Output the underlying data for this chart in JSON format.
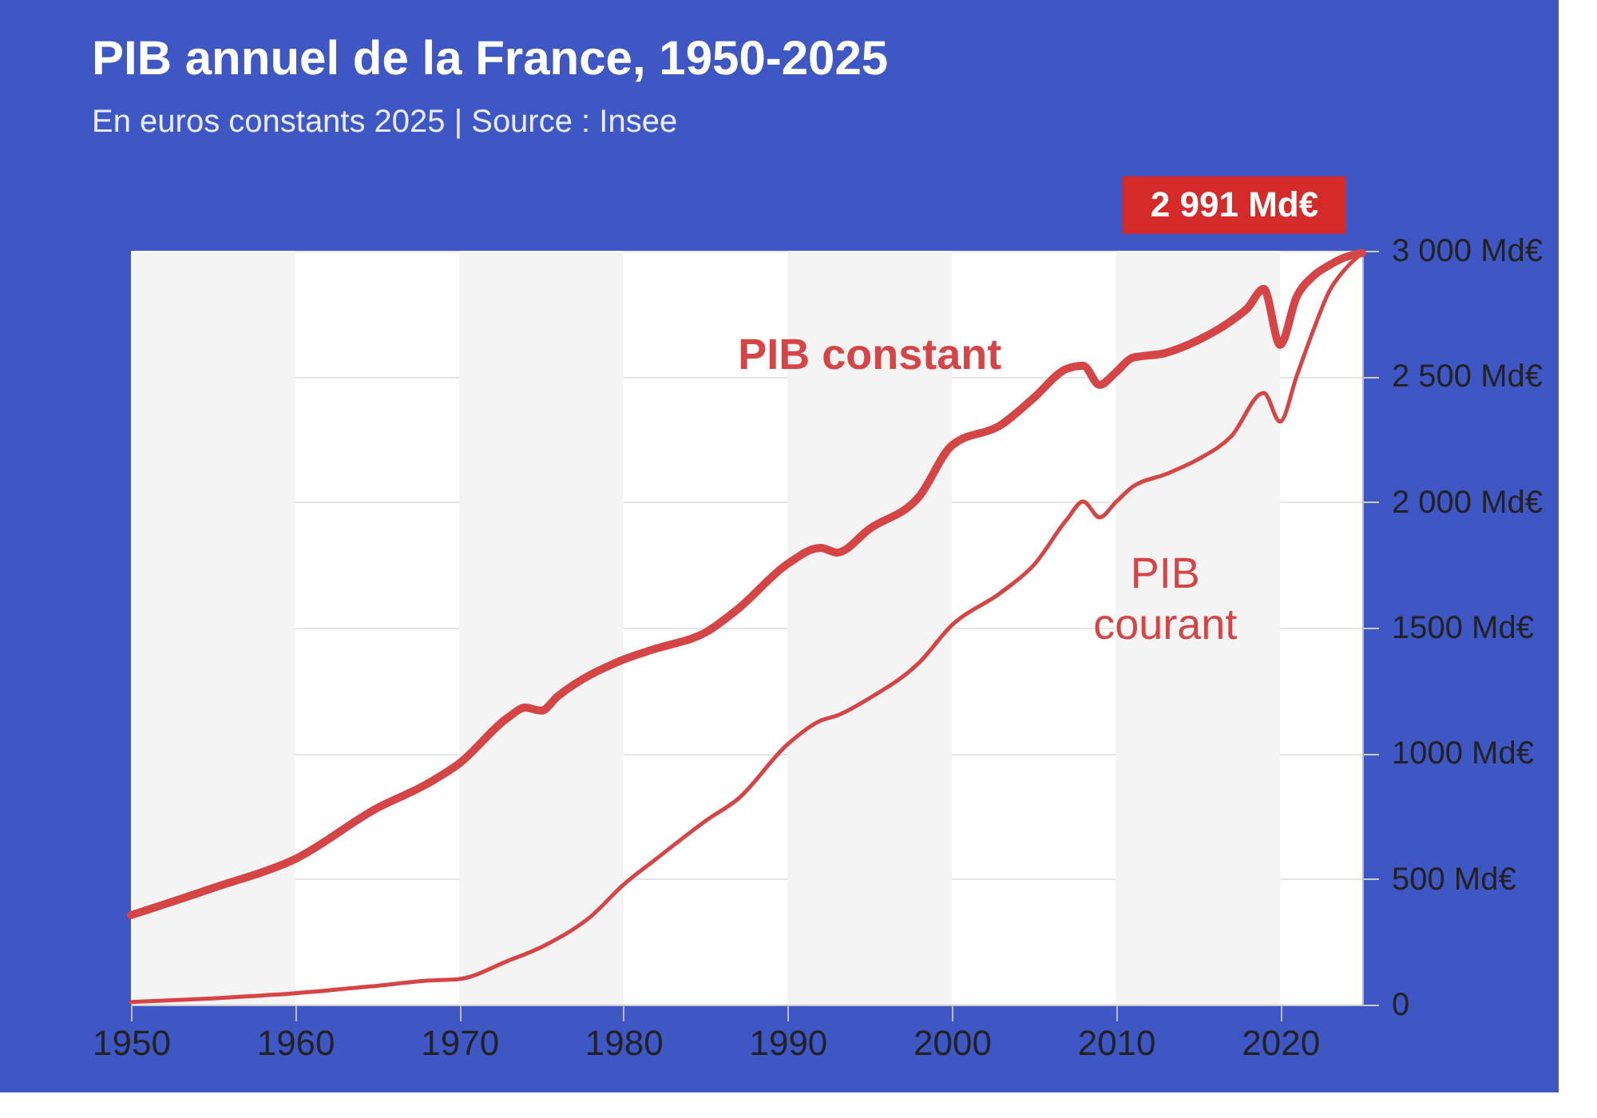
{
  "chart_data": {
    "type": "line",
    "title": "PIB annuel de la France, 1950-2025",
    "subtitle": "En euros constants 2025  |  Source : Insee",
    "series": [
      {
        "name": "PIB constant",
        "color": "#d64545",
        "x": [
          1950,
          1955,
          1960,
          1965,
          1968,
          1970,
          1973,
          1974,
          1975,
          1976,
          1980,
          1982,
          1985,
          1987,
          1990,
          1992,
          1993,
          1995,
          1998,
          2000,
          2003,
          2005,
          2007,
          2008,
          2009,
          2010,
          2011,
          2013,
          2015,
          2017,
          2018,
          2019,
          2020,
          2021,
          2022,
          2023,
          2024,
          2025
        ],
        "values": [
          356,
          464,
          579,
          782,
          877,
          960,
          1144,
          1182,
          1170,
          1227,
          1373,
          1417,
          1481,
          1576,
          1754,
          1818,
          1799,
          1894,
          2021,
          2225,
          2307,
          2415,
          2530,
          2542,
          2466,
          2517,
          2574,
          2593,
          2644,
          2720,
          2771,
          2848,
          2625,
          2816,
          2898,
          2943,
          2975,
          2991
        ]
      },
      {
        "name": "PIB courant",
        "color": "#d64545",
        "x": [
          1950,
          1955,
          1960,
          1965,
          1968,
          1970,
          1973,
          1975,
          1978,
          1980,
          1982,
          1985,
          1987,
          1990,
          1992,
          1993,
          1995,
          1998,
          2000,
          2003,
          2005,
          2007,
          2008,
          2009,
          2010,
          2011,
          2013,
          2015,
          2017,
          2019,
          2020,
          2021,
          2022,
          2023,
          2024,
          2025
        ],
        "values": [
          10,
          25,
          45,
          75,
          95,
          102,
          175,
          229,
          350,
          477,
          580,
          731,
          820,
          1036,
          1130,
          1150,
          1220,
          1360,
          1510,
          1640,
          1750,
          1930,
          2002,
          1939,
          2000,
          2060,
          2110,
          2170,
          2260,
          2434,
          2320,
          2500,
          2680,
          2840,
          2930,
          2991
        ]
      }
    ],
    "xlim": [
      1950,
      2025
    ],
    "xticks": [
      1950,
      1960,
      1970,
      1980,
      1990,
      2000,
      2010,
      2020
    ],
    "ylim": [
      0,
      3000
    ],
    "yticks": [
      0,
      {
        "value": 500,
        "label": "500 Md€"
      },
      {
        "value": 1000,
        "label": "1000 Md€"
      },
      {
        "value": 1500,
        "label": "1500 Md€"
      },
      {
        "value": 2000,
        "label": "2 000 Md€"
      },
      {
        "value": 2500,
        "label": "2 500 Md€"
      },
      {
        "value": 3000,
        "label": "3 000 Md€"
      }
    ],
    "grid": "y",
    "legend": false,
    "marker": "none",
    "line_style": "solid",
    "bands": [
      {
        "axis": "x",
        "from": 1950,
        "to": 1960,
        "color": "#f4f4f4"
      },
      {
        "axis": "x",
        "from": 1970,
        "to": 1980,
        "color": "#f4f4f4"
      },
      {
        "axis": "x",
        "from": 1990,
        "to": 2000,
        "color": "#f4f4f4"
      },
      {
        "axis": "x",
        "from": 2010,
        "to": 2020,
        "color": "#f4f4f4"
      }
    ],
    "annotations": [
      {
        "text": "2 991 Md€",
        "x": 2025,
        "y": 2991
      }
    ]
  }
}
